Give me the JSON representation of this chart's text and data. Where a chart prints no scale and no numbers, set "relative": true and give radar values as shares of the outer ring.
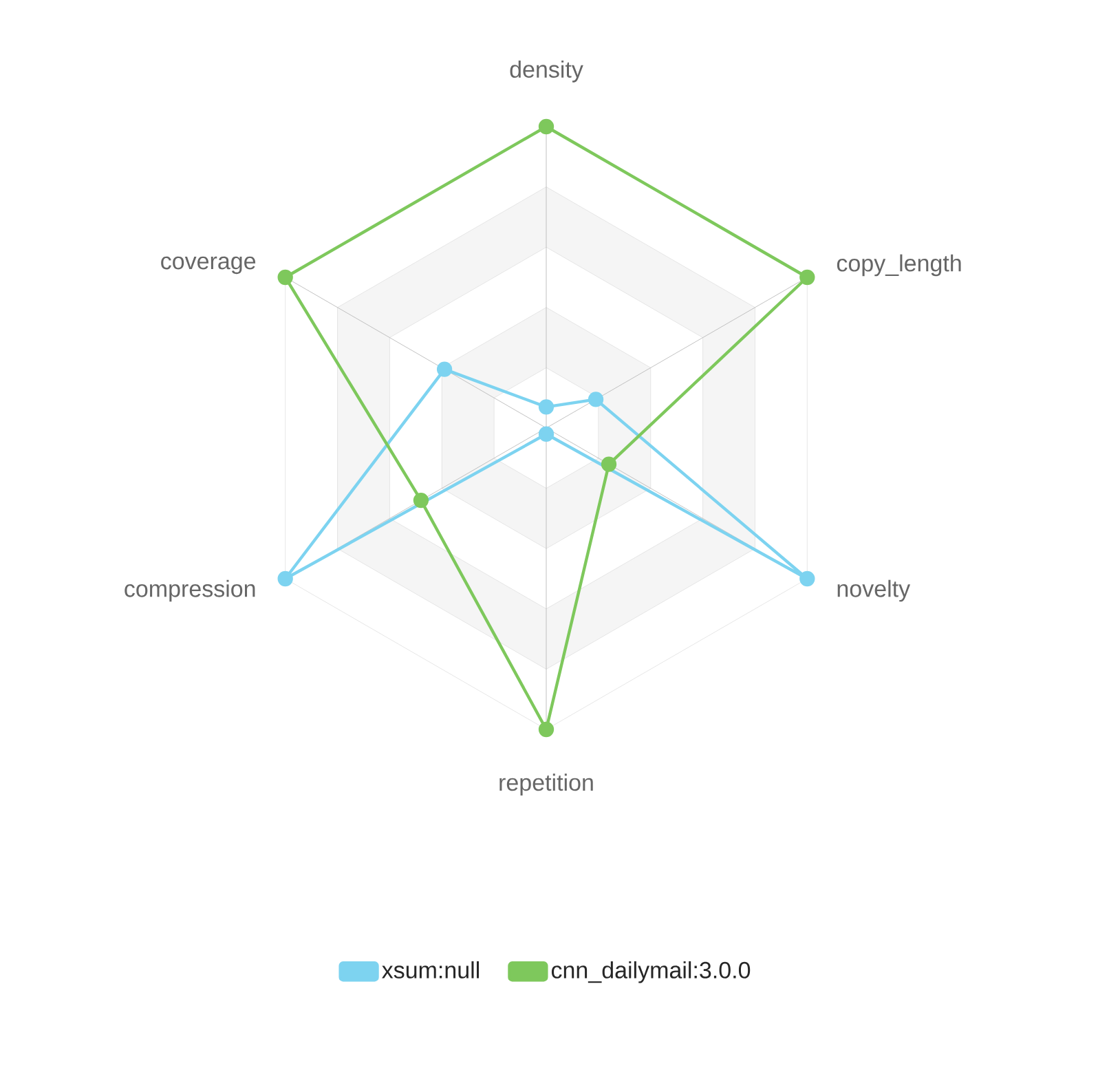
{
  "chart_data": {
    "type": "radar",
    "relative": true,
    "grid": true,
    "legend": "bottom",
    "marker": "circle",
    "categories": [
      "density",
      "copy_length",
      "novelty",
      "repetition",
      "compression",
      "coverage"
    ],
    "series": [
      {
        "name": "xsum:null",
        "color": "#7dd3f0",
        "values": [
          0.07,
          0.19,
          1,
          0.02,
          1,
          0.39
        ]
      },
      {
        "name": "cnn_dailymail:3.0.0",
        "color": "#7ec85c",
        "values": [
          1,
          1,
          0.24,
          1,
          0.48,
          1
        ]
      }
    ]
  }
}
